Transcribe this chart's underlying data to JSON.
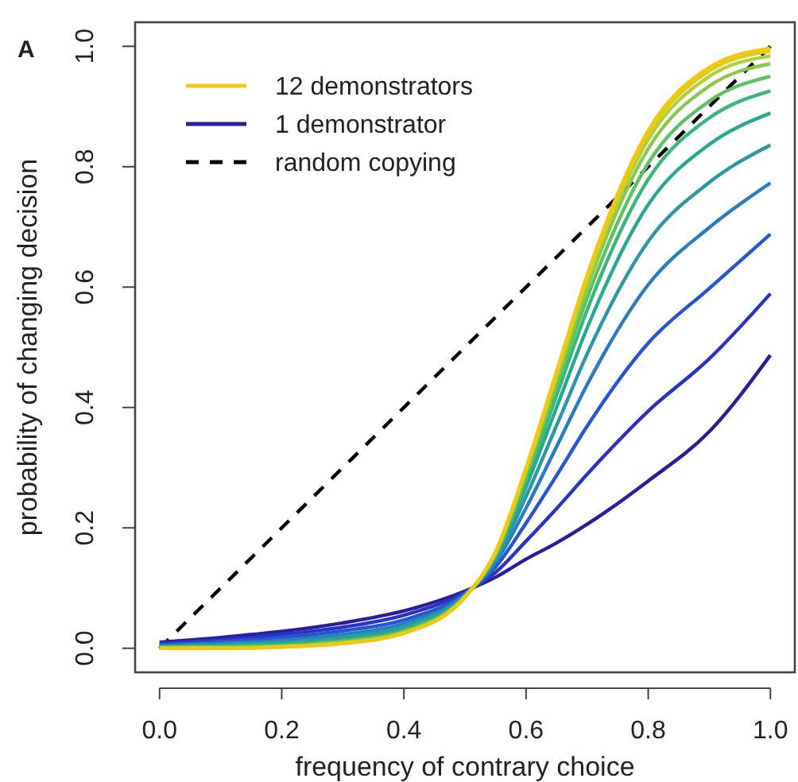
{
  "chart_data": {
    "type": "line",
    "xlabel": "frequency of contrary choice",
    "ylabel": "probability of changing decision",
    "annotations": [
      "A"
    ],
    "x": [
      0,
      0.1,
      0.2,
      0.3,
      0.4,
      0.5,
      0.55,
      0.6,
      0.65,
      0.7,
      0.8,
      0.9,
      1.0
    ],
    "xlim": [
      -0.04,
      1.04
    ],
    "ylim": [
      -0.04,
      1.04
    ],
    "xticks": [
      {
        "value": 0,
        "label": "0.0"
      },
      0.2,
      0.4,
      0.6,
      0.8,
      {
        "value": 1,
        "label": "1.0"
      }
    ],
    "yticks": [
      {
        "value": 0,
        "label": "0.0"
      },
      0.2,
      0.4,
      0.6,
      0.8,
      {
        "value": 1,
        "label": "1.0"
      }
    ],
    "grid": false,
    "legend": "top left",
    "line_style": "solid",
    "marker": "none",
    "series": [
      {
        "name": "12 demonstrators",
        "color": "#f2c80f",
        "values": [
          0.0,
          0.0,
          0.002,
          0.008,
          0.025,
          0.085,
          0.16,
          0.3,
          0.46,
          0.62,
          0.86,
          0.965,
          0.997
        ]
      },
      {
        "color": "#d6cf22",
        "values": [
          0,
          0,
          0.002,
          0.008,
          0.025,
          0.085,
          0.16,
          0.298,
          0.457,
          0.616,
          0.854,
          0.959,
          0.992
        ]
      },
      {
        "color": "#b0cf3a",
        "values": [
          0,
          0,
          0.003,
          0.009,
          0.026,
          0.085,
          0.159,
          0.296,
          0.453,
          0.61,
          0.845,
          0.95,
          0.984
        ]
      },
      {
        "color": "#86c94d",
        "values": [
          0.001,
          0.001,
          0.003,
          0.01,
          0.027,
          0.086,
          0.158,
          0.292,
          0.445,
          0.599,
          0.83,
          0.934,
          0.971
        ]
      },
      {
        "color": "#5cc163",
        "values": [
          0.001,
          0.002,
          0.004,
          0.011,
          0.028,
          0.086,
          0.156,
          0.286,
          0.434,
          0.582,
          0.806,
          0.909,
          0.95
        ]
      },
      {
        "color": "#39b67a",
        "values": [
          0.001,
          0.003,
          0.006,
          0.013,
          0.03,
          0.086,
          0.154,
          0.279,
          0.42,
          0.562,
          0.779,
          0.881,
          0.926
        ]
      },
      {
        "color": "#28a891",
        "values": [
          0.002,
          0.004,
          0.008,
          0.015,
          0.033,
          0.087,
          0.151,
          0.268,
          0.4,
          0.532,
          0.737,
          0.837,
          0.889
        ]
      },
      {
        "color": "#2a96a8",
        "values": [
          0.003,
          0.006,
          0.01,
          0.019,
          0.037,
          0.088,
          0.147,
          0.252,
          0.37,
          0.489,
          0.676,
          0.774,
          0.836
        ]
      },
      {
        "color": "#2a7bc0",
        "values": [
          0.004,
          0.008,
          0.013,
          0.023,
          0.041,
          0.089,
          0.142,
          0.233,
          0.335,
          0.438,
          0.604,
          0.699,
          0.773
        ]
      },
      {
        "color": "#2755cf",
        "values": [
          0.006,
          0.011,
          0.018,
          0.029,
          0.047,
          0.091,
          0.135,
          0.208,
          0.287,
          0.369,
          0.507,
          0.598,
          0.688
        ]
      },
      {
        "color": "#2a32c4",
        "values": [
          0.008,
          0.014,
          0.023,
          0.035,
          0.055,
          0.093,
          0.126,
          0.178,
          0.232,
          0.289,
          0.394,
          0.481,
          0.589
        ]
      },
      {
        "name": "1 demonstrator",
        "color": "#2b1d9a",
        "values": [
          0.01,
          0.018,
          0.028,
          0.042,
          0.062,
          0.095,
          0.118,
          0.148,
          0.175,
          0.206,
          0.278,
          0.36,
          0.487
        ]
      },
      {
        "name": "random copying",
        "color": "#000000",
        "line_style": "dashed",
        "x": [
          0,
          1
        ],
        "values": [
          0,
          1
        ]
      }
    ]
  }
}
